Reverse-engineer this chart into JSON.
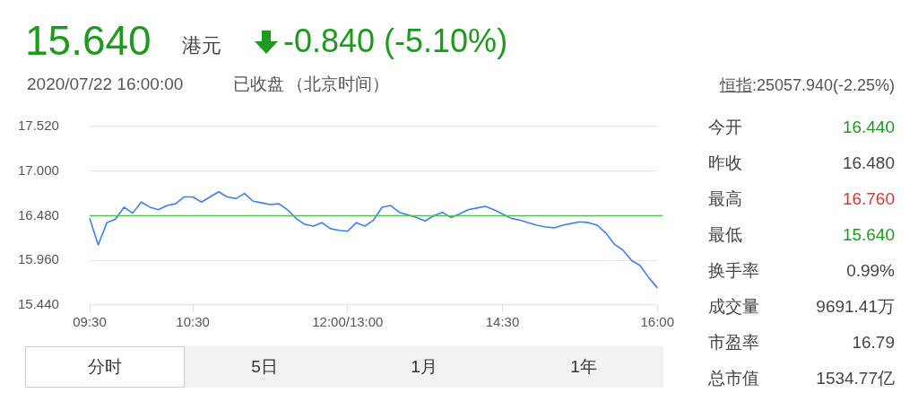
{
  "chart_data": {
    "type": "line",
    "categories": [
      "09:30",
      null,
      null,
      null,
      null,
      null,
      null,
      null,
      null,
      null,
      null,
      null,
      "10:30",
      null,
      null,
      null,
      null,
      null,
      null,
      null,
      null,
      null,
      null,
      null,
      null,
      null,
      null,
      null,
      null,
      null,
      "12:00/13:00",
      null,
      null,
      null,
      null,
      null,
      null,
      null,
      null,
      null,
      null,
      null,
      null,
      null,
      null,
      null,
      null,
      null,
      "14:30",
      null,
      null,
      null,
      null,
      null,
      null,
      null,
      null,
      null,
      null,
      null,
      null,
      null,
      null,
      null,
      null,
      null,
      "16:00"
    ],
    "series": [
      {
        "color": "#3d7ff5",
        "values": [
          16.45,
          16.14,
          16.4,
          16.44,
          16.58,
          16.51,
          16.64,
          16.58,
          16.55,
          16.6,
          16.62,
          16.7,
          16.7,
          16.64,
          16.7,
          16.76,
          16.7,
          16.68,
          16.74,
          16.65,
          16.63,
          16.61,
          16.62,
          16.55,
          16.45,
          16.38,
          16.36,
          16.4,
          16.33,
          16.31,
          16.3,
          16.4,
          16.36,
          16.43,
          16.58,
          16.6,
          16.52,
          16.49,
          16.46,
          16.42,
          16.48,
          16.52,
          16.46,
          16.5,
          16.55,
          16.57,
          16.59,
          16.55,
          16.5,
          16.45,
          16.43,
          16.4,
          16.37,
          16.35,
          16.34,
          16.37,
          16.39,
          16.41,
          16.4,
          16.37,
          16.28,
          16.15,
          16.08,
          15.96,
          15.9,
          15.76,
          15.64
        ]
      }
    ],
    "ylim": [
      15.44,
      17.52
    ],
    "yticks": [
      {
        "value": 15.44,
        "label": "15.440"
      },
      {
        "value": 15.96,
        "label": "15.960"
      },
      {
        "value": 16.48,
        "label": "16.480"
      },
      {
        "value": 17.0,
        "label": "17.000"
      },
      {
        "value": 17.52,
        "label": "17.520"
      }
    ],
    "ref_lines": [
      {
        "axis": "y",
        "value": 16.48,
        "color": "#5cb85c"
      }
    ],
    "grid": "y",
    "marker": "none",
    "line_style": "solid",
    "annotations": [
      "15.640",
      "港元",
      "-0.840 (-5.10%)",
      "2020/07/22 16:00:00",
      "已收盘",
      "（北京时间）",
      "恒指",
      ":25057.940(-2.25%)",
      "今开",
      "16.440",
      "昨收",
      "16.480",
      "最高",
      "16.760",
      "最低",
      "15.640",
      "换手率",
      "0.99%",
      "成交量",
      "9691.41万",
      "市盈率",
      "16.79",
      "总市值",
      "1534.77亿",
      "分时",
      "5日",
      "1月",
      "1年"
    ]
  }
}
